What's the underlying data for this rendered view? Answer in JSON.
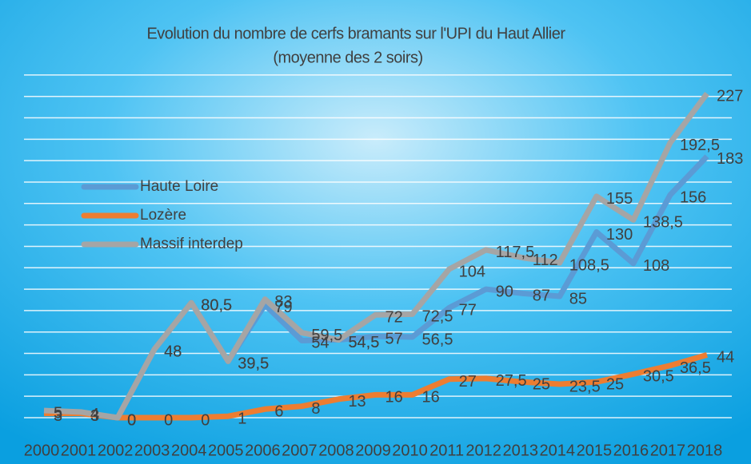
{
  "chart_data": {
    "type": "line",
    "title": "Evolution du nombre de cerfs bramants sur l'UPI du Haut Allier",
    "subtitle": "(moyenne des 2 soirs)",
    "categories": [
      "2000",
      "2001",
      "2002",
      "2003",
      "2004",
      "2005",
      "2006",
      "2007",
      "2008",
      "2009",
      "2010",
      "2011",
      "2012",
      "2013",
      "2014",
      "2015",
      "2016",
      "2017",
      "2018"
    ],
    "ylim": [
      0,
      250
    ],
    "yticks": [
      0,
      15,
      30,
      45,
      60,
      75,
      90,
      105,
      120,
      135,
      150,
      165,
      180,
      195,
      210,
      225,
      240
    ],
    "grid": true,
    "legend": "left",
    "series": [
      {
        "name": "Haute Loire",
        "color": "#5b9bd5",
        "values": [
          5,
          3,
          0,
          48,
          80.5,
          39.5,
          79,
          54,
          54.5,
          57,
          56.5,
          77,
          90,
          87,
          85,
          130,
          108,
          156,
          183
        ],
        "value_labels": [
          "5",
          "3",
          "0",
          "48",
          "80,5",
          "39,5",
          "79",
          "54",
          "54,5",
          "57",
          "56,5",
          "77",
          "90",
          "87",
          "85",
          "130",
          "108",
          "156",
          "183"
        ]
      },
      {
        "name": "Lozère",
        "color": "#ed7d31",
        "values": [
          3,
          3,
          0,
          0,
          0,
          1,
          6,
          8,
          13,
          16,
          16,
          27,
          27.5,
          25,
          23.5,
          25,
          30.5,
          36.5,
          44
        ],
        "value_labels": [
          "3",
          "3",
          "0",
          "0",
          "0",
          "1",
          "6",
          "8",
          "13",
          "16",
          "16",
          "27",
          "27,5",
          "25",
          "23,5",
          "25",
          "30,5",
          "36,5",
          "44"
        ]
      },
      {
        "name": "Massif interdep",
        "color": "#a5a5a5",
        "values": [
          5,
          4,
          0,
          48,
          80.5,
          39.5,
          83,
          59.5,
          54.5,
          72,
          72.5,
          104,
          117.5,
          112,
          108.5,
          155,
          138.5,
          192.5,
          227
        ],
        "value_labels": [
          "5",
          "4",
          "0",
          "48",
          "80,5",
          "39,5",
          "83",
          "59,5",
          "54,5",
          "72",
          "72,5",
          "104",
          "117,5",
          "112",
          "108,5",
          "155",
          "138,5",
          "192,5",
          "227"
        ]
      }
    ]
  }
}
